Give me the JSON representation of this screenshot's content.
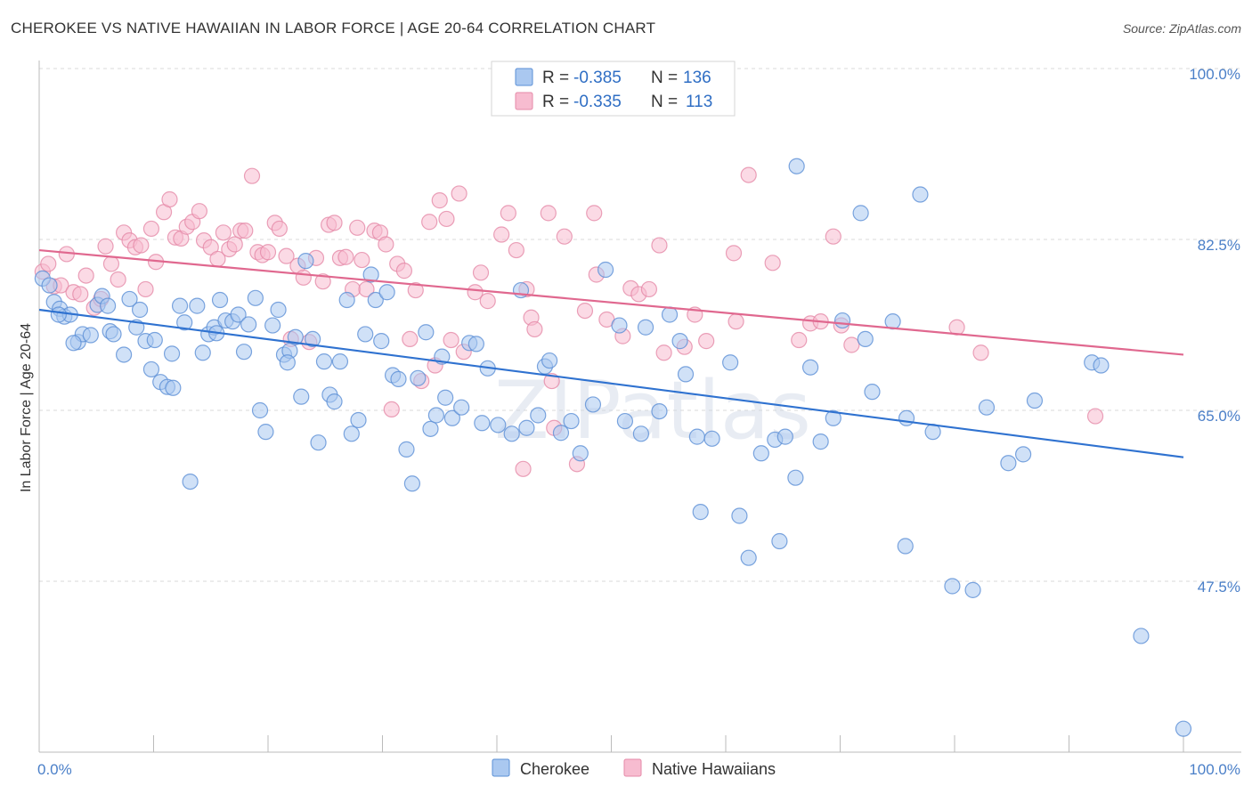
{
  "title": "CHEROKEE VS NATIVE HAWAIIAN IN LABOR FORCE | AGE 20-64 CORRELATION CHART",
  "source": "Source: ZipAtlas.com",
  "colors": {
    "cherokee_fill": "#aac8f0",
    "cherokee_stroke": "#5b8fd6",
    "cherokee_line": "#2f72d0",
    "hawaiian_fill": "#f7bcd0",
    "hawaiian_stroke": "#e58aa8",
    "hawaiian_line": "#e0688f",
    "tick_label": "#4a7fc8",
    "grid": "#d8d8d8"
  },
  "legend": {
    "rows": [
      {
        "r_label": "R =",
        "r_value": "-0.385",
        "n_label": "N =",
        "n_value": "136"
      },
      {
        "r_label": "R =",
        "r_value": "-0.335",
        "n_label": "N =",
        "n_value": "113"
      }
    ]
  },
  "watermark": "ZIPatlas",
  "chart_data": {
    "type": "scatter",
    "title": "CHEROKEE VS NATIVE HAWAIIAN IN LABOR FORCE | AGE 20-64 CORRELATION CHART",
    "xlabel": "",
    "ylabel": "In Labor Force | Age 20-64",
    "xlim": [
      0,
      100
    ],
    "ylim": [
      30,
      100
    ],
    "x_tick_labels": [
      "0.0%",
      "100.0%"
    ],
    "y_ticks": [
      47.5,
      65.0,
      82.5,
      100.0
    ],
    "y_tick_labels": [
      "47.5%",
      "65.0%",
      "82.5%",
      "100.0%"
    ],
    "grid": true,
    "legend_position": "top-center",
    "series": [
      {
        "name": "Cherokee",
        "color": "#aac8f0",
        "r": -0.385,
        "n": 136,
        "trend": {
          "x": [
            0,
            100
          ],
          "y": [
            75.3,
            60.2
          ]
        },
        "points": [
          [
            0.3,
            78.5
          ],
          [
            0.9,
            77.8
          ],
          [
            1.3,
            76.1
          ],
          [
            1.8,
            75.4
          ],
          [
            2.2,
            74.6
          ],
          [
            2.7,
            74.8
          ],
          [
            3.4,
            72.0
          ],
          [
            3.8,
            72.8
          ],
          [
            4.5,
            72.7
          ],
          [
            5.1,
            75.8
          ],
          [
            5.5,
            76.7
          ],
          [
            6.2,
            73.1
          ],
          [
            6.5,
            72.8
          ],
          [
            7.4,
            70.7
          ],
          [
            7.9,
            76.4
          ],
          [
            8.5,
            73.5
          ],
          [
            8.8,
            75.3
          ],
          [
            9.3,
            72.1
          ],
          [
            9.8,
            69.2
          ],
          [
            10.1,
            72.2
          ],
          [
            10.6,
            67.9
          ],
          [
            11.2,
            67.4
          ],
          [
            11.7,
            67.3
          ],
          [
            12.3,
            75.7
          ],
          [
            12.7,
            74.0
          ],
          [
            13.2,
            57.7
          ],
          [
            13.8,
            75.7
          ],
          [
            14.3,
            70.9
          ],
          [
            14.8,
            72.8
          ],
          [
            15.3,
            73.5
          ],
          [
            15.8,
            76.3
          ],
          [
            16.3,
            74.2
          ],
          [
            16.9,
            74.1
          ],
          [
            17.4,
            74.8
          ],
          [
            17.9,
            71.0
          ],
          [
            18.3,
            73.8
          ],
          [
            18.9,
            76.5
          ],
          [
            19.3,
            65.0
          ],
          [
            19.8,
            62.8
          ],
          [
            20.4,
            73.7
          ],
          [
            20.9,
            75.3
          ],
          [
            21.4,
            70.7
          ],
          [
            21.9,
            71.1
          ],
          [
            22.4,
            72.5
          ],
          [
            22.9,
            66.4
          ],
          [
            23.3,
            80.3
          ],
          [
            23.9,
            72.3
          ],
          [
            24.4,
            61.7
          ],
          [
            24.9,
            70.0
          ],
          [
            25.4,
            66.6
          ],
          [
            25.8,
            65.9
          ],
          [
            26.3,
            70.0
          ],
          [
            26.9,
            76.3
          ],
          [
            27.3,
            62.6
          ],
          [
            27.9,
            64.0
          ],
          [
            28.5,
            72.8
          ],
          [
            29.0,
            78.9
          ],
          [
            29.4,
            76.3
          ],
          [
            29.9,
            72.1
          ],
          [
            30.4,
            77.1
          ],
          [
            30.9,
            68.6
          ],
          [
            31.4,
            68.2
          ],
          [
            32.1,
            61.0
          ],
          [
            32.6,
            57.5
          ],
          [
            33.1,
            68.3
          ],
          [
            33.8,
            73.0
          ],
          [
            34.2,
            63.1
          ],
          [
            34.7,
            64.5
          ],
          [
            35.2,
            70.5
          ],
          [
            35.5,
            66.3
          ],
          [
            36.1,
            64.2
          ],
          [
            36.9,
            65.3
          ],
          [
            37.6,
            71.9
          ],
          [
            38.2,
            71.8
          ],
          [
            38.7,
            63.7
          ],
          [
            39.2,
            69.3
          ],
          [
            40.1,
            63.5
          ],
          [
            41.3,
            62.6
          ],
          [
            42.1,
            77.3
          ],
          [
            42.6,
            63.2
          ],
          [
            43.6,
            64.5
          ],
          [
            44.2,
            69.5
          ],
          [
            44.6,
            70.1
          ],
          [
            45.6,
            62.7
          ],
          [
            46.5,
            63.9
          ],
          [
            47.3,
            60.6
          ],
          [
            48.4,
            65.6
          ],
          [
            49.5,
            79.4
          ],
          [
            50.7,
            73.7
          ],
          [
            51.2,
            63.9
          ],
          [
            52.6,
            62.6
          ],
          [
            53.0,
            73.5
          ],
          [
            54.2,
            64.9
          ],
          [
            55.1,
            74.8
          ],
          [
            56.0,
            72.1
          ],
          [
            56.5,
            68.7
          ],
          [
            57.5,
            62.3
          ],
          [
            57.8,
            54.6
          ],
          [
            58.8,
            62.1
          ],
          [
            60.4,
            69.9
          ],
          [
            61.2,
            54.2
          ],
          [
            62.0,
            49.9
          ],
          [
            63.1,
            60.6
          ],
          [
            64.3,
            62.0
          ],
          [
            64.7,
            51.6
          ],
          [
            65.2,
            62.3
          ],
          [
            66.1,
            58.1
          ],
          [
            66.2,
            90.0
          ],
          [
            67.4,
            69.4
          ],
          [
            68.3,
            61.8
          ],
          [
            69.4,
            64.2
          ],
          [
            70.2,
            74.2
          ],
          [
            71.8,
            85.2
          ],
          [
            72.2,
            72.3
          ],
          [
            72.8,
            66.9
          ],
          [
            74.6,
            74.1
          ],
          [
            75.7,
            51.1
          ],
          [
            75.8,
            64.2
          ],
          [
            77.0,
            87.1
          ],
          [
            78.1,
            62.8
          ],
          [
            79.8,
            47.0
          ],
          [
            81.6,
            46.6
          ],
          [
            82.8,
            65.3
          ],
          [
            84.7,
            59.6
          ],
          [
            86.0,
            60.5
          ],
          [
            87.0,
            66.0
          ],
          [
            92.0,
            69.9
          ],
          [
            92.8,
            69.6
          ],
          [
            96.3,
            41.9
          ],
          [
            100.0,
            32.4
          ],
          [
            1.7,
            74.8
          ],
          [
            3.0,
            71.9
          ],
          [
            6.0,
            75.7
          ],
          [
            11.6,
            70.8
          ],
          [
            15.5,
            72.9
          ],
          [
            21.7,
            69.9
          ]
        ]
      },
      {
        "name": "Native Hawaiians",
        "color": "#f7bcd0",
        "r": -0.335,
        "n": 113,
        "trend": {
          "x": [
            0,
            100
          ],
          "y": [
            81.4,
            70.7
          ]
        },
        "points": [
          [
            0.3,
            79.2
          ],
          [
            0.8,
            80.0
          ],
          [
            1.3,
            77.7
          ],
          [
            1.9,
            77.8
          ],
          [
            2.4,
            81.0
          ],
          [
            3.0,
            77.1
          ],
          [
            3.6,
            76.9
          ],
          [
            4.1,
            78.8
          ],
          [
            4.8,
            75.5
          ],
          [
            5.4,
            76.4
          ],
          [
            5.8,
            81.8
          ],
          [
            6.3,
            80.0
          ],
          [
            6.9,
            78.4
          ],
          [
            7.4,
            83.2
          ],
          [
            7.9,
            82.4
          ],
          [
            8.4,
            81.7
          ],
          [
            8.9,
            81.9
          ],
          [
            9.3,
            77.4
          ],
          [
            9.8,
            83.6
          ],
          [
            10.2,
            80.2
          ],
          [
            10.9,
            85.3
          ],
          [
            11.4,
            86.6
          ],
          [
            11.9,
            82.7
          ],
          [
            12.4,
            82.6
          ],
          [
            12.9,
            83.8
          ],
          [
            13.4,
            84.3
          ],
          [
            14.0,
            85.4
          ],
          [
            14.4,
            82.4
          ],
          [
            15.0,
            81.7
          ],
          [
            15.6,
            80.5
          ],
          [
            16.1,
            83.2
          ],
          [
            16.6,
            81.5
          ],
          [
            17.1,
            82.0
          ],
          [
            17.6,
            83.4
          ],
          [
            18.0,
            83.4
          ],
          [
            18.6,
            89.0
          ],
          [
            19.1,
            81.2
          ],
          [
            19.5,
            80.9
          ],
          [
            20.0,
            81.2
          ],
          [
            20.6,
            84.2
          ],
          [
            21.0,
            83.6
          ],
          [
            21.6,
            80.8
          ],
          [
            22.0,
            72.3
          ],
          [
            22.6,
            79.8
          ],
          [
            23.1,
            78.6
          ],
          [
            23.6,
            72.0
          ],
          [
            24.2,
            80.6
          ],
          [
            24.8,
            78.2
          ],
          [
            25.3,
            84.0
          ],
          [
            25.8,
            84.2
          ],
          [
            26.3,
            80.6
          ],
          [
            26.8,
            80.7
          ],
          [
            27.4,
            77.4
          ],
          [
            27.8,
            83.7
          ],
          [
            28.2,
            80.4
          ],
          [
            28.6,
            77.4
          ],
          [
            29.3,
            83.4
          ],
          [
            29.8,
            83.2
          ],
          [
            30.3,
            82.0
          ],
          [
            30.8,
            65.1
          ],
          [
            31.3,
            80.0
          ],
          [
            31.9,
            79.3
          ],
          [
            32.4,
            72.3
          ],
          [
            32.9,
            77.3
          ],
          [
            33.4,
            68.0
          ],
          [
            34.1,
            84.3
          ],
          [
            34.6,
            69.6
          ],
          [
            35.0,
            86.5
          ],
          [
            35.6,
            84.6
          ],
          [
            36.0,
            72.2
          ],
          [
            36.7,
            87.2
          ],
          [
            37.1,
            71.0
          ],
          [
            38.1,
            77.1
          ],
          [
            38.6,
            79.1
          ],
          [
            39.2,
            76.2
          ],
          [
            40.4,
            83.0
          ],
          [
            41.0,
            85.2
          ],
          [
            41.7,
            81.4
          ],
          [
            42.3,
            59.0
          ],
          [
            42.6,
            77.4
          ],
          [
            43.0,
            74.5
          ],
          [
            43.3,
            73.3
          ],
          [
            44.5,
            85.2
          ],
          [
            44.8,
            68.0
          ],
          [
            45.0,
            63.2
          ],
          [
            45.9,
            82.8
          ],
          [
            47.0,
            59.5
          ],
          [
            47.7,
            75.2
          ],
          [
            48.5,
            85.2
          ],
          [
            48.7,
            78.9
          ],
          [
            49.6,
            74.3
          ],
          [
            51.0,
            72.6
          ],
          [
            51.7,
            77.5
          ],
          [
            52.4,
            76.9
          ],
          [
            53.3,
            77.4
          ],
          [
            54.2,
            81.9
          ],
          [
            54.6,
            70.9
          ],
          [
            56.4,
            71.5
          ],
          [
            57.3,
            74.8
          ],
          [
            58.3,
            72.1
          ],
          [
            60.7,
            81.1
          ],
          [
            60.9,
            74.1
          ],
          [
            62.0,
            89.1
          ],
          [
            64.1,
            80.1
          ],
          [
            66.4,
            72.2
          ],
          [
            67.4,
            73.9
          ],
          [
            68.3,
            74.1
          ],
          [
            69.4,
            82.8
          ],
          [
            70.1,
            73.7
          ],
          [
            71.0,
            71.7
          ],
          [
            80.2,
            73.5
          ],
          [
            82.3,
            70.9
          ],
          [
            92.3,
            64.4
          ]
        ]
      }
    ]
  },
  "bottom_legend": {
    "items": [
      "Cherokee",
      "Native Hawaiians"
    ]
  }
}
